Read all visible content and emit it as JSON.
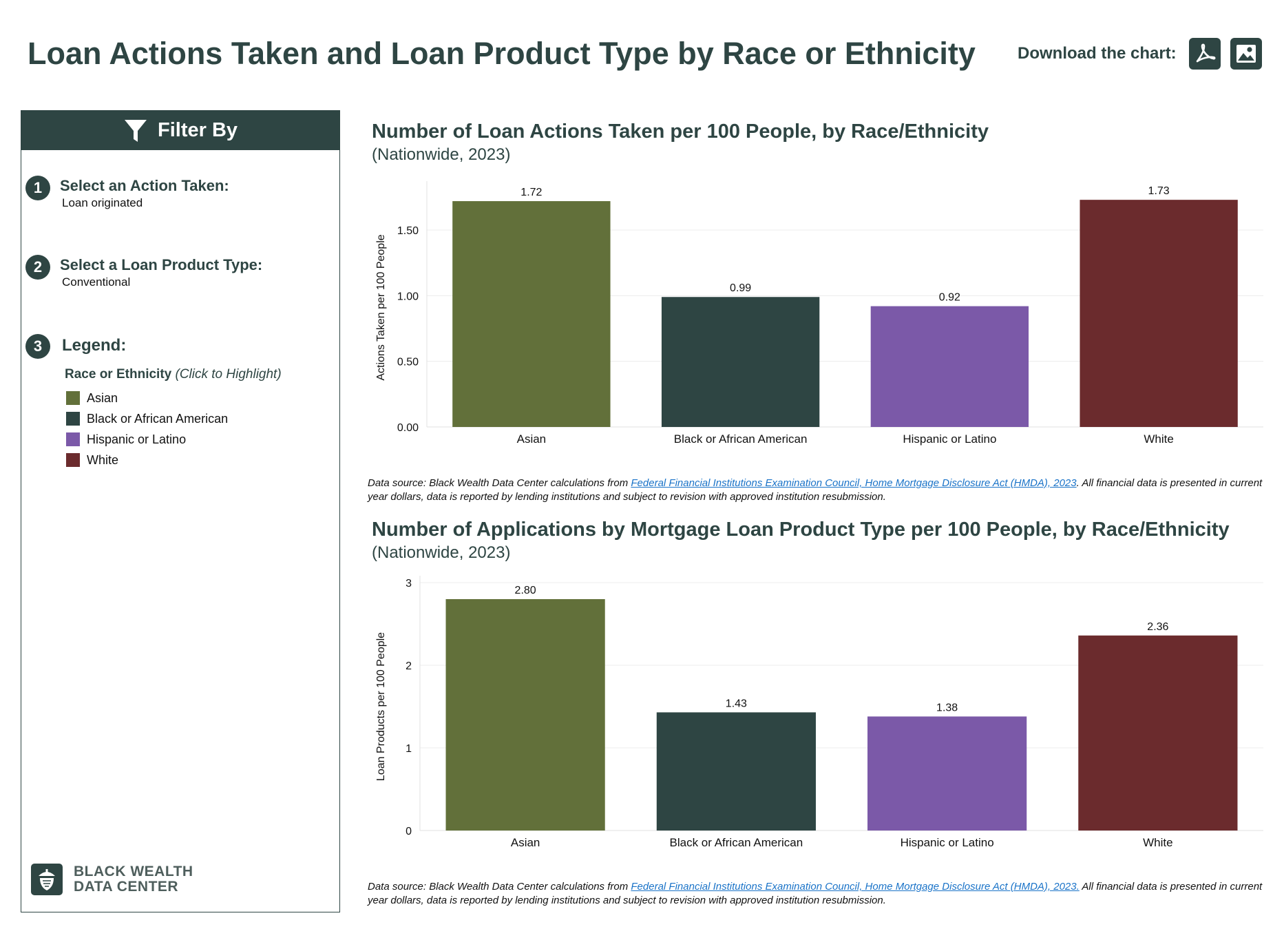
{
  "header": {
    "title": "Loan Actions Taken and Loan Product Type by Race or Ethnicity",
    "download_label": "Download the chart:",
    "download_buttons": [
      {
        "icon": "pdf-icon"
      },
      {
        "icon": "image-icon"
      }
    ]
  },
  "sidebar": {
    "filter_label": "Filter By",
    "step1": {
      "num": "1",
      "title": "Select an Action Taken:",
      "value": "Loan originated"
    },
    "step2": {
      "num": "2",
      "title": "Select a Loan Product Type:",
      "value": "Conventional"
    },
    "step3": {
      "num": "3",
      "title": "Legend:"
    },
    "legend": {
      "title": "Race or Ethnicity",
      "hint": "(Click to Highlight)",
      "items": [
        {
          "label": "Asian",
          "color": "#62703a"
        },
        {
          "label": "Black or African American",
          "color": "#2e4543"
        },
        {
          "label": "Hispanic or Latino",
          "color": "#7b59a8"
        },
        {
          "label": "White",
          "color": "#6b2b2d"
        }
      ]
    },
    "logo": {
      "line1": "BLACK WEALTH",
      "line2": "DATA CENTER"
    }
  },
  "chart_data": [
    {
      "type": "bar",
      "title": "Number of Loan Actions Taken per 100 People, by Race/Ethnicity",
      "subtitle": "(Nationwide, 2023)",
      "ylabel": "Actions Taken per 100 People",
      "xlabel": "",
      "categories": [
        "Asian",
        "Black or African American",
        "Hispanic or Latino",
        "White"
      ],
      "values": [
        1.72,
        0.99,
        0.92,
        1.73
      ],
      "value_labels": [
        "1.72",
        "0.99",
        "0.92",
        "1.73"
      ],
      "colors": [
        "#62703a",
        "#2e4543",
        "#7b59a8",
        "#6b2b2d"
      ],
      "yticks": [
        0,
        0.5,
        1,
        1.5
      ],
      "ytick_labels": [
        "0.00",
        "0.50",
        "1.00",
        "1.50"
      ],
      "ylim": [
        0,
        1.82
      ],
      "grid": true,
      "source_prefix": "Data source: Black Wealth Data Center calculations from ",
      "source_link": "Federal Financial Institutions Examination Council, Home Mortgage Disclosure Act (HMDA), 2023",
      "source_suffix": ". All financial data is presented in current year dollars, data is reported by lending institutions and subject to revision with approved institution resubmission."
    },
    {
      "type": "bar",
      "title": "Number of Applications by Mortgage Loan Product Type per 100 People, by Race/Ethnicity",
      "subtitle": "(Nationwide, 2023)",
      "ylabel": "Loan Products per 100 People",
      "xlabel": "",
      "categories": [
        "Asian",
        "Black or African American",
        "Hispanic or Latino",
        "White"
      ],
      "values": [
        2.8,
        1.43,
        1.38,
        2.36
      ],
      "value_labels": [
        "2.80",
        "1.43",
        "1.38",
        "2.36"
      ],
      "colors": [
        "#62703a",
        "#2e4543",
        "#7b59a8",
        "#6b2b2d"
      ],
      "yticks": [
        0,
        1,
        2,
        3
      ],
      "ytick_labels": [
        "0",
        "1",
        "2",
        "3"
      ],
      "ylim": [
        0,
        3
      ],
      "grid": true,
      "source_prefix": "Data source: Black Wealth Data Center calculations from ",
      "source_link": "Federal Financial Institutions Examination Council, Home Mortgage Disclosure Act (HMDA), 2023.",
      "source_suffix": " All financial data is presented in current year dollars, data is reported by lending institutions and subject to revision with approved institution resubmission."
    }
  ]
}
